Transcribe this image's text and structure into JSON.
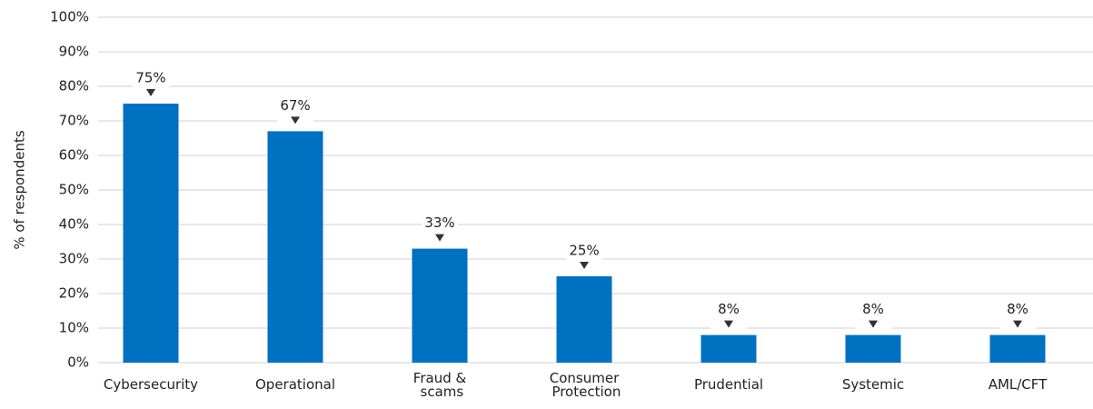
{
  "chart_data": {
    "type": "bar",
    "y_label": "% of respondents",
    "categories": [
      "Cybersecurity",
      "Operational",
      "Fraud & scams",
      "Consumer Protection",
      "Prudential",
      "Systemic",
      "AML/CFT"
    ],
    "values": [
      75,
      67,
      33,
      25,
      8,
      8,
      8
    ],
    "value_labels": [
      "75%",
      "67%",
      "33%",
      "25%",
      "8%",
      "8%",
      "8%"
    ],
    "color": "#0070c0",
    "ylim": [
      0,
      100
    ],
    "yticks": [
      {
        "value": 0,
        "label": "0%"
      },
      {
        "value": 10,
        "label": "10%"
      },
      {
        "value": 20,
        "label": "20%"
      },
      {
        "value": 30,
        "label": "30%"
      },
      {
        "value": 40,
        "label": "40%"
      },
      {
        "value": 50,
        "label": "50%"
      },
      {
        "value": 60,
        "label": "60%"
      },
      {
        "value": 70,
        "label": "70%"
      },
      {
        "value": 80,
        "label": "80%"
      },
      {
        "value": 90,
        "label": "90%"
      },
      {
        "value": 100,
        "label": "100%"
      }
    ],
    "grid": true
  }
}
